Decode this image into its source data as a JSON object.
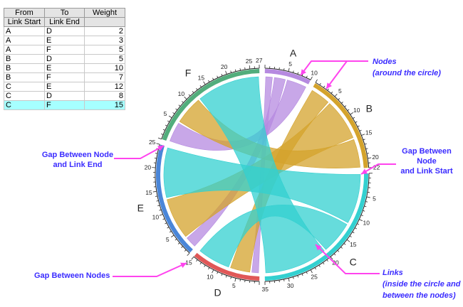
{
  "table": {
    "headers": [
      [
        "From",
        "To",
        "Weight"
      ],
      [
        "Link Start",
        "Link End",
        ""
      ]
    ],
    "rows": [
      [
        "A",
        "D",
        "2"
      ],
      [
        "A",
        "E",
        "3"
      ],
      [
        "A",
        "F",
        "5"
      ],
      [
        "B",
        "D",
        "5"
      ],
      [
        "B",
        "E",
        "10"
      ],
      [
        "B",
        "F",
        "7"
      ],
      [
        "C",
        "E",
        "12"
      ],
      [
        "C",
        "D",
        "8"
      ],
      [
        "C",
        "F",
        "15"
      ]
    ],
    "selected_row": 8
  },
  "nodes": [
    {
      "name": "A",
      "total": 10,
      "color": "#b68ae0"
    },
    {
      "name": "B",
      "total": 22,
      "color": "#d4a32c"
    },
    {
      "name": "C",
      "total": 35,
      "color": "#33d0d0"
    },
    {
      "name": "D",
      "total": 15,
      "color": "#e05858"
    },
    {
      "name": "E",
      "total": 25,
      "color": "#4a86d8"
    },
    {
      "name": "F",
      "total": 27,
      "color": "#52ad7c"
    }
  ],
  "annotations": {
    "nodes": [
      "Nodes",
      "(around the circle)"
    ],
    "gap_link_start": [
      "Gap Between Node",
      "and Link Start"
    ],
    "gap_link_end": [
      "Gap Between Node",
      "and Link End"
    ],
    "gap_nodes": "Gap Between Nodes",
    "links": [
      "Links",
      "(inside the circle and",
      "between the nodes)"
    ],
    "arrow_color": "#ff44ee",
    "text_color": "#3a2bff"
  }
}
